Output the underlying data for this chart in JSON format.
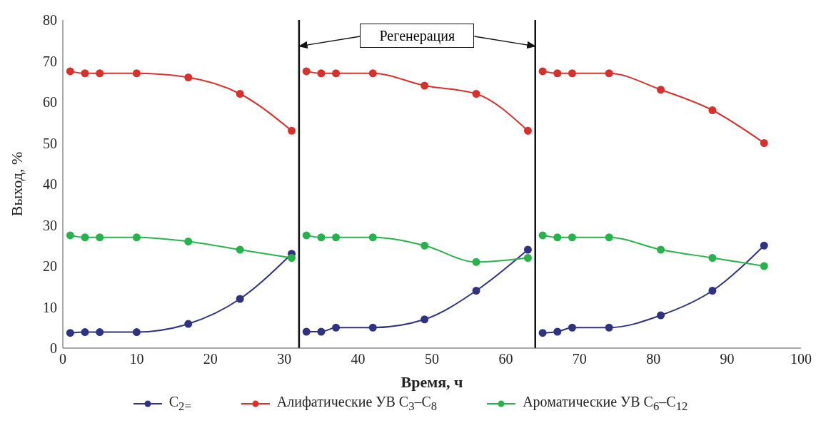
{
  "chart_data": {
    "type": "line",
    "x": [
      1,
      3,
      5,
      10,
      17,
      24,
      31,
      32,
      33,
      35,
      37,
      42,
      49,
      56,
      63,
      64,
      65,
      67,
      69,
      74,
      81,
      88,
      95
    ],
    "series": [
      {
        "name": "C$_{2=}$",
        "color": "#2e3282",
        "values": [
          3.7,
          3.9,
          3.9,
          3.9,
          5.9,
          12,
          23,
          null,
          4,
          4,
          5,
          5,
          7,
          14,
          24,
          null,
          3.7,
          4,
          5,
          5,
          8,
          14,
          25
        ]
      },
      {
        "name": "Алифатические УВ C$_{3}$–C$_{8}$",
        "color": "#d9302c",
        "values": [
          67.5,
          67,
          67,
          67,
          66,
          62,
          53,
          null,
          67.5,
          67,
          67,
          67,
          64,
          62,
          53,
          null,
          67.5,
          67,
          67,
          67,
          63,
          58,
          50
        ]
      },
      {
        "name": "Ароматические УВ C$_{6}$–C$_{12}$",
        "color": "#27b34b",
        "values": [
          27.5,
          27,
          27,
          27,
          26,
          24,
          22,
          null,
          27.5,
          27,
          27,
          27,
          25,
          21,
          22,
          null,
          27.5,
          27,
          27,
          27,
          24,
          22,
          20
        ]
      }
    ],
    "xlabel": "Время, ч",
    "ylabel": "Выход, %",
    "xlim": [
      0,
      100
    ],
    "xticks": [
      0,
      10,
      20,
      30,
      40,
      50,
      60,
      70,
      80,
      90,
      100
    ],
    "ylim": [
      0,
      80
    ],
    "yticks": [
      0,
      10,
      20,
      30,
      40,
      50,
      60,
      70,
      80
    ],
    "ref_lines": [
      {
        "axis": "x",
        "value": 32,
        "color": "#111111"
      },
      {
        "axis": "x",
        "value": 64,
        "color": "#111111"
      }
    ],
    "annotations": [
      "Регенерация"
    ],
    "grid": false,
    "legend": "bottom",
    "marker": "circle",
    "line_style": "solid"
  }
}
